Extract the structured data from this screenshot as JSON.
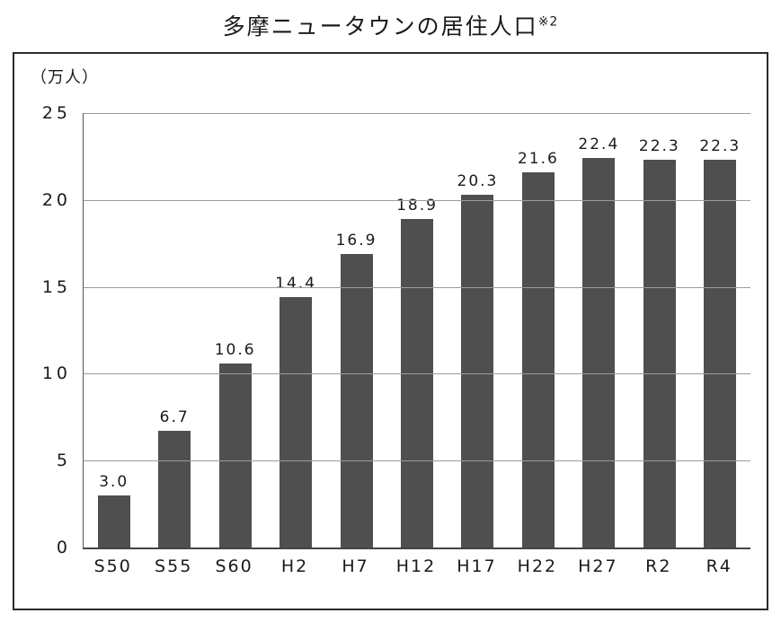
{
  "title": {
    "text": "多摩ニュータウンの居住人口",
    "superscript": "※2"
  },
  "unit_label": "（万人）",
  "chart_data": {
    "type": "bar",
    "title": "多摩ニュータウンの居住人口※2",
    "ylabel": "（万人）",
    "categories": [
      "S50",
      "S55",
      "S60",
      "H2",
      "H7",
      "H12",
      "H17",
      "H22",
      "H27",
      "R2",
      "R4"
    ],
    "values": [
      3.0,
      6.7,
      10.6,
      14.4,
      16.9,
      18.9,
      20.3,
      21.6,
      22.4,
      22.3,
      22.3
    ],
    "value_labels": [
      "3.0",
      "6.7",
      "10.6",
      "14.4",
      "16.9",
      "18.9",
      "20.3",
      "21.6",
      "22.4",
      "22.3",
      "22.3"
    ],
    "ylim": [
      0,
      25
    ],
    "yticks": [
      0,
      5,
      10,
      15,
      20,
      25
    ],
    "grid": true,
    "legend": "none",
    "bar_color": "#4f4f4f"
  }
}
